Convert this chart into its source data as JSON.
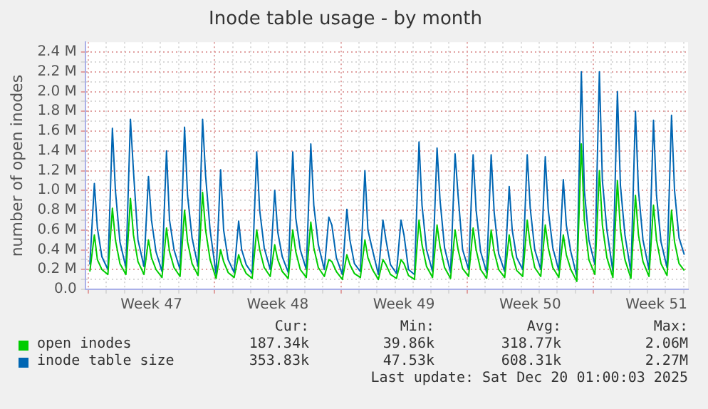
{
  "chart_data": {
    "type": "line",
    "title": "Inode table usage - by month",
    "ylabel": "number of open inodes",
    "x": [
      "2025-11-17T02:00",
      "2025-11-17T08:00",
      "2025-11-17T12:00",
      "2025-11-17T18:00",
      "2025-11-18T02:00",
      "2025-11-18T08:00",
      "2025-11-18T12:00",
      "2025-11-18T18:00",
      "2025-11-19T02:00",
      "2025-11-19T08:00",
      "2025-11-19T12:00",
      "2025-11-19T18:00",
      "2025-11-20T02:00",
      "2025-11-20T08:00",
      "2025-11-20T12:00",
      "2025-11-20T18:00",
      "2025-11-21T02:00",
      "2025-11-21T08:00",
      "2025-11-21T12:00",
      "2025-11-21T18:00",
      "2025-11-22T02:00",
      "2025-11-22T08:00",
      "2025-11-22T12:00",
      "2025-11-22T18:00",
      "2025-11-23T02:00",
      "2025-11-23T08:00",
      "2025-11-23T12:00",
      "2025-11-23T18:00",
      "2025-11-24T02:00",
      "2025-11-24T08:00",
      "2025-11-24T12:00",
      "2025-11-24T18:00",
      "2025-11-25T02:00",
      "2025-11-25T08:00",
      "2025-11-25T12:00",
      "2025-11-25T18:00",
      "2025-11-26T02:00",
      "2025-11-26T08:00",
      "2025-11-26T12:00",
      "2025-11-26T18:00",
      "2025-11-27T02:00",
      "2025-11-27T08:00",
      "2025-11-27T12:00",
      "2025-11-27T18:00",
      "2025-11-28T02:00",
      "2025-11-28T08:00",
      "2025-11-28T12:00",
      "2025-11-28T18:00",
      "2025-11-29T02:00",
      "2025-11-29T08:00",
      "2025-11-29T12:00",
      "2025-11-29T18:00",
      "2025-11-30T02:00",
      "2025-11-30T08:00",
      "2025-11-30T12:00",
      "2025-11-30T18:00",
      "2025-12-01T02:00",
      "2025-12-01T08:00",
      "2025-12-01T12:00",
      "2025-12-01T18:00",
      "2025-12-02T02:00",
      "2025-12-02T08:00",
      "2025-12-02T12:00",
      "2025-12-02T18:00",
      "2025-12-03T02:00",
      "2025-12-03T08:00",
      "2025-12-03T12:00",
      "2025-12-03T18:00",
      "2025-12-04T02:00",
      "2025-12-04T08:00",
      "2025-12-04T12:00",
      "2025-12-04T18:00",
      "2025-12-05T02:00",
      "2025-12-05T08:00",
      "2025-12-05T12:00",
      "2025-12-05T18:00",
      "2025-12-06T02:00",
      "2025-12-06T08:00",
      "2025-12-06T12:00",
      "2025-12-06T18:00",
      "2025-12-07T02:00",
      "2025-12-07T08:00",
      "2025-12-07T12:00",
      "2025-12-07T18:00",
      "2025-12-08T02:00",
      "2025-12-08T08:00",
      "2025-12-08T12:00",
      "2025-12-08T18:00",
      "2025-12-09T02:00",
      "2025-12-09T08:00",
      "2025-12-09T12:00",
      "2025-12-09T18:00",
      "2025-12-10T02:00",
      "2025-12-10T08:00",
      "2025-12-10T12:00",
      "2025-12-10T18:00",
      "2025-12-11T02:00",
      "2025-12-11T08:00",
      "2025-12-11T12:00",
      "2025-12-11T18:00",
      "2025-12-12T02:00",
      "2025-12-12T08:00",
      "2025-12-12T12:00",
      "2025-12-12T18:00",
      "2025-12-13T02:00",
      "2025-12-13T08:00",
      "2025-12-13T12:00",
      "2025-12-13T18:00",
      "2025-12-14T02:00",
      "2025-12-14T08:00",
      "2025-12-14T12:00",
      "2025-12-14T18:00",
      "2025-12-15T02:00",
      "2025-12-15T08:00",
      "2025-12-15T12:00",
      "2025-12-15T18:00",
      "2025-12-16T02:00",
      "2025-12-16T08:00",
      "2025-12-16T12:00",
      "2025-12-16T18:00",
      "2025-12-17T02:00",
      "2025-12-17T08:00",
      "2025-12-17T12:00",
      "2025-12-17T18:00",
      "2025-12-18T02:00",
      "2025-12-18T08:00",
      "2025-12-18T12:00",
      "2025-12-18T18:00",
      "2025-12-19T02:00",
      "2025-12-19T08:00",
      "2025-12-19T12:00",
      "2025-12-19T18:00",
      "2025-12-20T01:00"
    ],
    "series": [
      {
        "name": "open inodes",
        "color": "#00cc00",
        "values": [
          180000,
          550000,
          300000,
          200000,
          150000,
          820000,
          500000,
          260000,
          150000,
          920000,
          550000,
          280000,
          150000,
          500000,
          320000,
          200000,
          120000,
          620000,
          380000,
          220000,
          130000,
          800000,
          480000,
          260000,
          140000,
          980000,
          600000,
          300000,
          110000,
          400000,
          280000,
          170000,
          120000,
          350000,
          250000,
          160000,
          110000,
          600000,
          400000,
          220000,
          130000,
          450000,
          300000,
          180000,
          110000,
          600000,
          380000,
          200000,
          120000,
          680000,
          420000,
          220000,
          130000,
          300000,
          280000,
          180000,
          100000,
          350000,
          250000,
          160000,
          120000,
          500000,
          320000,
          200000,
          100000,
          300000,
          250000,
          150000,
          110000,
          300000,
          260000,
          140000,
          100000,
          700000,
          450000,
          230000,
          120000,
          650000,
          430000,
          220000,
          110000,
          600000,
          400000,
          210000,
          130000,
          620000,
          400000,
          200000,
          110000,
          600000,
          380000,
          200000,
          120000,
          550000,
          350000,
          190000,
          130000,
          700000,
          450000,
          220000,
          130000,
          650000,
          420000,
          220000,
          120000,
          550000,
          350000,
          200000,
          80000,
          1470000,
          700000,
          300000,
          150000,
          1200000,
          650000,
          320000,
          120000,
          1100000,
          600000,
          300000,
          110000,
          950000,
          550000,
          280000,
          130000,
          850000,
          500000,
          260000,
          140000,
          800000,
          480000,
          260000,
          190000
        ]
      },
      {
        "name": "inode table size",
        "color": "#0066b3",
        "values": [
          250000,
          1070000,
          620000,
          330000,
          200000,
          1630000,
          1000000,
          480000,
          220000,
          1720000,
          1200000,
          500000,
          230000,
          1140000,
          700000,
          380000,
          180000,
          1400000,
          700000,
          400000,
          200000,
          1640000,
          950000,
          520000,
          230000,
          1720000,
          1150000,
          600000,
          150000,
          1210000,
          600000,
          300000,
          170000,
          690000,
          400000,
          250000,
          160000,
          1390000,
          800000,
          420000,
          200000,
          1000000,
          580000,
          330000,
          170000,
          1390000,
          720000,
          400000,
          200000,
          1470000,
          850000,
          450000,
          200000,
          730000,
          650000,
          320000,
          150000,
          810000,
          500000,
          260000,
          180000,
          1200000,
          600000,
          400000,
          150000,
          700000,
          500000,
          250000,
          160000,
          700000,
          550000,
          200000,
          150000,
          1490000,
          850000,
          400000,
          180000,
          1430000,
          900000,
          420000,
          170000,
          1370000,
          950000,
          400000,
          200000,
          1360000,
          800000,
          380000,
          170000,
          1360000,
          780000,
          360000,
          180000,
          1040000,
          600000,
          320000,
          200000,
          1360000,
          820000,
          400000,
          200000,
          1340000,
          800000,
          420000,
          190000,
          1110000,
          650000,
          380000,
          130000,
          2200000,
          1000000,
          500000,
          250000,
          2200000,
          1100000,
          600000,
          180000,
          2000000,
          1050000,
          550000,
          170000,
          1800000,
          1000000,
          500000,
          200000,
          1710000,
          950000,
          480000,
          220000,
          1760000,
          1000000,
          520000,
          350000
        ]
      }
    ],
    "xlim": [
      "2025-11-16T20:00",
      "2025-12-20T06:00"
    ],
    "xticks": [
      {
        "value": "2025-11-17",
        "label": null
      },
      {
        "value": "2025-11-18",
        "label": null
      },
      {
        "value": "2025-11-19",
        "label": null
      },
      {
        "value": "2025-11-20",
        "label": null
      },
      {
        "value": "2025-11-20T12:00",
        "label": "Week 47"
      },
      {
        "value": "2025-11-21",
        "label": null
      },
      {
        "value": "2025-11-22",
        "label": null
      },
      {
        "value": "2025-11-23",
        "label": null
      },
      {
        "value": "2025-11-24",
        "label": null
      },
      {
        "value": "2025-11-25",
        "label": null
      },
      {
        "value": "2025-11-26",
        "label": null
      },
      {
        "value": "2025-11-27",
        "label": null
      },
      {
        "value": "2025-11-27T12:00",
        "label": "Week 48"
      },
      {
        "value": "2025-11-28",
        "label": null
      },
      {
        "value": "2025-11-29",
        "label": null
      },
      {
        "value": "2025-11-30",
        "label": null
      },
      {
        "value": "2025-12-01",
        "label": null
      },
      {
        "value": "2025-12-02",
        "label": null
      },
      {
        "value": "2025-12-03",
        "label": null
      },
      {
        "value": "2025-12-04",
        "label": null
      },
      {
        "value": "2025-12-04T12:00",
        "label": "Week 49"
      },
      {
        "value": "2025-12-05",
        "label": null
      },
      {
        "value": "2025-12-06",
        "label": null
      },
      {
        "value": "2025-12-07",
        "label": null
      },
      {
        "value": "2025-12-08",
        "label": null
      },
      {
        "value": "2025-12-09",
        "label": null
      },
      {
        "value": "2025-12-10",
        "label": null
      },
      {
        "value": "2025-12-11",
        "label": null
      },
      {
        "value": "2025-12-11T12:00",
        "label": "Week 50"
      },
      {
        "value": "2025-12-12",
        "label": null
      },
      {
        "value": "2025-12-13",
        "label": null
      },
      {
        "value": "2025-12-14",
        "label": null
      },
      {
        "value": "2025-12-15",
        "label": null
      },
      {
        "value": "2025-12-16",
        "label": null
      },
      {
        "value": "2025-12-17",
        "label": null
      },
      {
        "value": "2025-12-18",
        "label": null
      },
      {
        "value": "2025-12-18T12:00",
        "label": "Week 51"
      },
      {
        "value": "2025-12-19",
        "label": null
      },
      {
        "value": "2025-12-20",
        "label": null
      }
    ],
    "ylim": [
      0,
      2500000
    ],
    "yticks": [
      {
        "value": 0,
        "label": "0.0"
      },
      {
        "value": 100000,
        "label": null
      },
      {
        "value": 200000,
        "label": "0.2 M"
      },
      {
        "value": 300000,
        "label": null
      },
      {
        "value": 400000,
        "label": "0.4 M"
      },
      {
        "value": 500000,
        "label": null
      },
      {
        "value": 600000,
        "label": "0.6 M"
      },
      {
        "value": 700000,
        "label": null
      },
      {
        "value": 800000,
        "label": "0.8 M"
      },
      {
        "value": 900000,
        "label": null
      },
      {
        "value": 1000000,
        "label": "1.0 M"
      },
      {
        "value": 1100000,
        "label": null
      },
      {
        "value": 1200000,
        "label": "1.2 M"
      },
      {
        "value": 1300000,
        "label": null
      },
      {
        "value": 1400000,
        "label": "1.4 M"
      },
      {
        "value": 1500000,
        "label": null
      },
      {
        "value": 1600000,
        "label": "1.6 M"
      },
      {
        "value": 1700000,
        "label": null
      },
      {
        "value": 1800000,
        "label": "1.8 M"
      },
      {
        "value": 1900000,
        "label": null
      },
      {
        "value": 2000000,
        "label": "2.0 M"
      },
      {
        "value": 2100000,
        "label": null
      },
      {
        "value": 2200000,
        "label": "2.2 M"
      },
      {
        "value": 2300000,
        "label": null
      },
      {
        "value": 2400000,
        "label": "2.4 M"
      }
    ],
    "grid": true,
    "legend": "bottom",
    "marker": "none",
    "line_style": "solid",
    "annotations": [
      "Cur:",
      "Min:",
      "Avg:",
      "Max:",
      "187.34k",
      "39.86k",
      "318.77k",
      "2.06M",
      "353.83k",
      "47.53k",
      "608.31k",
      "2.27M",
      "Last update: Sat Dec 20 01:00:03 2025"
    ]
  }
}
